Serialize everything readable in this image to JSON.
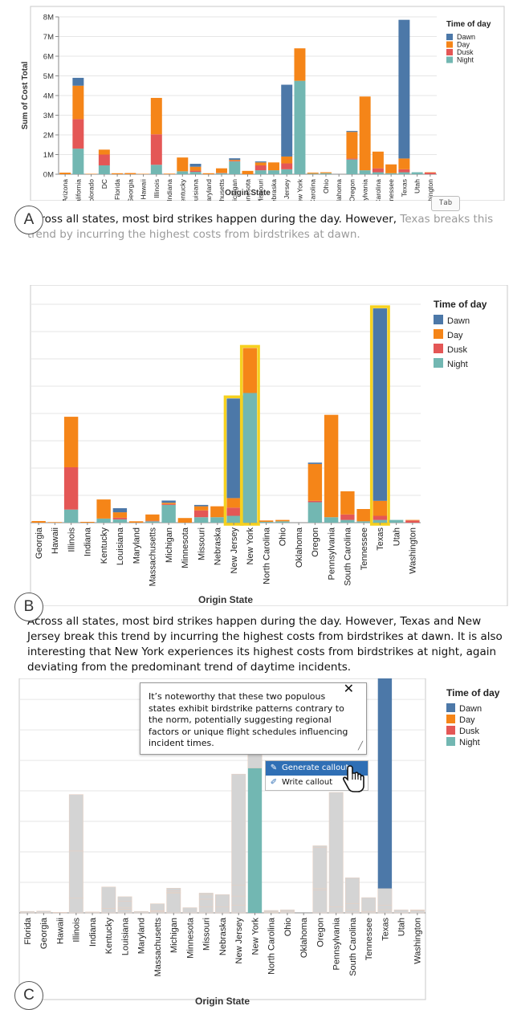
{
  "colors": {
    "Dawn": "#4c78a8",
    "Day": "#f58518",
    "Dusk": "#e45756",
    "Night": "#72b7b2",
    "muted": "#d4d4d4",
    "highlight": "#f6d11f"
  },
  "legend": {
    "title": "Time of day",
    "entries": [
      "Dawn",
      "Day",
      "Dusk",
      "Night"
    ]
  },
  "panels": [
    {
      "letter": "A",
      "caption_plain": "Across all states, most bird strikes happen during the day. However, ",
      "caption_suggestion": "Texas breaks this trend by incurring the highest costs from birdstrikes at dawn.",
      "tab_hint": "Tab"
    },
    {
      "letter": "B",
      "caption": "Across all states, most bird strikes happen during the day. However, Texas and New Jersey break this trend by incurring the highest costs from birdstrikes at dawn. It is also interesting that New York experiences its highest costs from birdstrikes at night, again deviating from the predominant trend of daytime incidents."
    },
    {
      "letter": "C",
      "tooltip": "It’s noteworthy that these two populous states exhibit birdstrike patterns contrary to the norm, potentially suggesting regional factors or unique flight schedules influencing incident times.",
      "tooltip_close": "✕",
      "menu": [
        "Generate callout",
        "Write callout"
      ]
    }
  ],
  "chart_data": [
    {
      "type": "bar",
      "stacked": true,
      "xlabel": "Origin State",
      "ylabel": "Sum of Cost Total",
      "ylim": [
        0,
        8000000
      ],
      "yticks": [
        "0M",
        "1M",
        "2M",
        "3M",
        "4M",
        "5M",
        "6M",
        "7M",
        "8M"
      ],
      "categories": [
        "Arizona",
        "California",
        "Colorado",
        "DC",
        "Florida",
        "Georgia",
        "Hawaii",
        "Illinois",
        "Indiana",
        "Kentucky",
        "Louisiana",
        "Maryland",
        "Massachusetts",
        "Michigan",
        "Minnesota",
        "Missouri",
        "Nebraska",
        "New Jersey",
        "New York",
        "North Carolina",
        "Ohio",
        "Oklahoma",
        "Oregon",
        "Pennsylvania",
        "South Carolina",
        "Tennessee",
        "Texas",
        "Utah",
        "Washington"
      ],
      "series": [
        {
          "name": "Night",
          "values": [
            0,
            1300000,
            0,
            450000,
            0,
            0,
            0,
            480000,
            0,
            150000,
            120000,
            0,
            50000,
            650000,
            0,
            200000,
            200000,
            250000,
            4750000,
            30000,
            50000,
            0,
            750000,
            200000,
            100000,
            50000,
            100000,
            100000,
            0
          ]
        },
        {
          "name": "Dusk",
          "values": [
            0,
            1500000,
            0,
            550000,
            0,
            0,
            0,
            1550000,
            0,
            0,
            60000,
            0,
            20000,
            30000,
            0,
            250000,
            0,
            300000,
            0,
            0,
            0,
            0,
            50000,
            0,
            200000,
            0,
            150000,
            0,
            80000
          ]
        },
        {
          "name": "Day",
          "values": [
            80000,
            1700000,
            20000,
            250000,
            50000,
            60000,
            20000,
            1850000,
            30000,
            700000,
            200000,
            50000,
            230000,
            50000,
            170000,
            150000,
            400000,
            350000,
            1650000,
            50000,
            50000,
            0,
            1350000,
            3750000,
            850000,
            450000,
            550000,
            0,
            20000
          ]
        },
        {
          "name": "Dawn",
          "values": [
            0,
            400000,
            0,
            0,
            0,
            0,
            0,
            0,
            0,
            0,
            150000,
            0,
            0,
            80000,
            0,
            50000,
            0,
            3650000,
            0,
            0,
            0,
            0,
            50000,
            0,
            0,
            0,
            7050000,
            0,
            0
          ]
        }
      ]
    },
    {
      "type": "bar",
      "stacked": true,
      "xlabel": "Origin State",
      "highlighted": [
        "New Jersey",
        "New York",
        "Texas"
      ],
      "categories": [
        "Georgia",
        "Hawaii",
        "Illinois",
        "Indiana",
        "Kentucky",
        "Louisiana",
        "Maryland",
        "Massachusetts",
        "Michigan",
        "Minnesota",
        "Missouri",
        "Nebraska",
        "New Jersey",
        "New York",
        "North Carolina",
        "Ohio",
        "Oklahoma",
        "Oregon",
        "Pennsylvania",
        "South Carolina",
        "Tennessee",
        "Texas",
        "Utah",
        "Washington"
      ],
      "series": [
        {
          "name": "Night",
          "values": [
            0,
            0,
            480000,
            0,
            150000,
            120000,
            0,
            50000,
            650000,
            0,
            200000,
            200000,
            250000,
            4750000,
            30000,
            50000,
            0,
            750000,
            200000,
            100000,
            50000,
            100000,
            100000,
            0
          ]
        },
        {
          "name": "Dusk",
          "values": [
            0,
            0,
            1550000,
            0,
            0,
            60000,
            0,
            20000,
            30000,
            0,
            250000,
            0,
            300000,
            0,
            0,
            0,
            0,
            50000,
            0,
            200000,
            0,
            150000,
            0,
            80000
          ]
        },
        {
          "name": "Day",
          "values": [
            60000,
            20000,
            1850000,
            30000,
            700000,
            200000,
            50000,
            230000,
            50000,
            170000,
            150000,
            400000,
            350000,
            1650000,
            50000,
            50000,
            0,
            1350000,
            3750000,
            850000,
            450000,
            550000,
            0,
            20000
          ]
        },
        {
          "name": "Dawn",
          "values": [
            0,
            0,
            0,
            0,
            0,
            150000,
            0,
            0,
            80000,
            0,
            50000,
            0,
            3650000,
            0,
            0,
            0,
            0,
            50000,
            0,
            0,
            0,
            7050000,
            0,
            0
          ]
        }
      ]
    },
    {
      "type": "bar",
      "stacked": true,
      "xlabel": "Origin State",
      "emphasized": {
        "New York": "Night",
        "Texas": "Dawn"
      },
      "categories": [
        "Florida",
        "Georgia",
        "Hawaii",
        "Illinois",
        "Indiana",
        "Kentucky",
        "Louisiana",
        "Maryland",
        "Massachusetts",
        "Michigan",
        "Minnesota",
        "Missouri",
        "Nebraska",
        "New Jersey",
        "New York",
        "North Carolina",
        "Ohio",
        "Oklahoma",
        "Oregon",
        "Pennsylvania",
        "South Carolina",
        "Tennessee",
        "Texas",
        "Utah",
        "Washington"
      ],
      "series": [
        {
          "name": "Night",
          "values": [
            0,
            0,
            0,
            480000,
            0,
            150000,
            120000,
            0,
            50000,
            650000,
            0,
            200000,
            200000,
            250000,
            4750000,
            30000,
            50000,
            0,
            750000,
            200000,
            100000,
            50000,
            100000,
            100000,
            0
          ]
        },
        {
          "name": "Dusk",
          "values": [
            0,
            0,
            0,
            1550000,
            0,
            0,
            60000,
            0,
            20000,
            30000,
            0,
            250000,
            0,
            300000,
            0,
            0,
            0,
            0,
            50000,
            0,
            200000,
            0,
            150000,
            0,
            80000
          ]
        },
        {
          "name": "Day",
          "values": [
            50000,
            60000,
            20000,
            1850000,
            30000,
            700000,
            200000,
            50000,
            230000,
            50000,
            170000,
            150000,
            400000,
            350000,
            1650000,
            50000,
            50000,
            0,
            1350000,
            3750000,
            850000,
            450000,
            550000,
            0,
            20000
          ]
        },
        {
          "name": "Dawn",
          "values": [
            0,
            0,
            0,
            0,
            0,
            0,
            150000,
            0,
            0,
            80000,
            0,
            50000,
            0,
            3650000,
            0,
            0,
            0,
            0,
            50000,
            0,
            0,
            0,
            7050000,
            0,
            0
          ]
        }
      ]
    }
  ]
}
